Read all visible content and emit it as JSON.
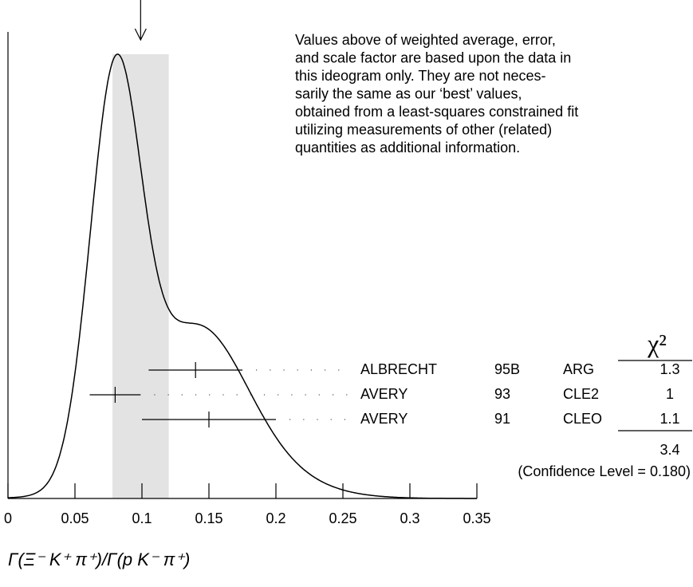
{
  "chart_data": {
    "type": "ideogram",
    "note_lines": [
      "Values above of weighted average, error,",
      "and scale factor are based upon the data in",
      "this ideogram only.  They are not neces-",
      "sarily the same as our ‘best’ values,",
      "obtained from a least-squares constrained fit",
      "utilizing measurements of other (related)",
      "quantities as additional information."
    ],
    "x_label": "Γ(Ξ⁻ K⁺ π⁺)/Γ(p K⁻ π⁺)",
    "xlim": [
      0,
      0.35
    ],
    "xticks": [
      0,
      0.05,
      0.1,
      0.15,
      0.2,
      0.25,
      0.3,
      0.35
    ],
    "average": {
      "value": 0.099,
      "error": 0.021
    },
    "measurements": [
      {
        "name": "ALBRECHT",
        "year": "95B",
        "tech": "ARG",
        "value": 0.14,
        "error": 0.035,
        "chi2": 1.3
      },
      {
        "name": "AVERY",
        "year": "93",
        "tech": "CLE2",
        "value": 0.08,
        "error": 0.019,
        "chi2": 1.0
      },
      {
        "name": "AVERY",
        "year": "91",
        "tech": "CLEO",
        "value": 0.15,
        "error": 0.05,
        "chi2": 1.1
      }
    ],
    "chi2_header": "χ²",
    "chi2_total": 3.4,
    "confidence_level": "(Confidence Level = 0.180)"
  }
}
